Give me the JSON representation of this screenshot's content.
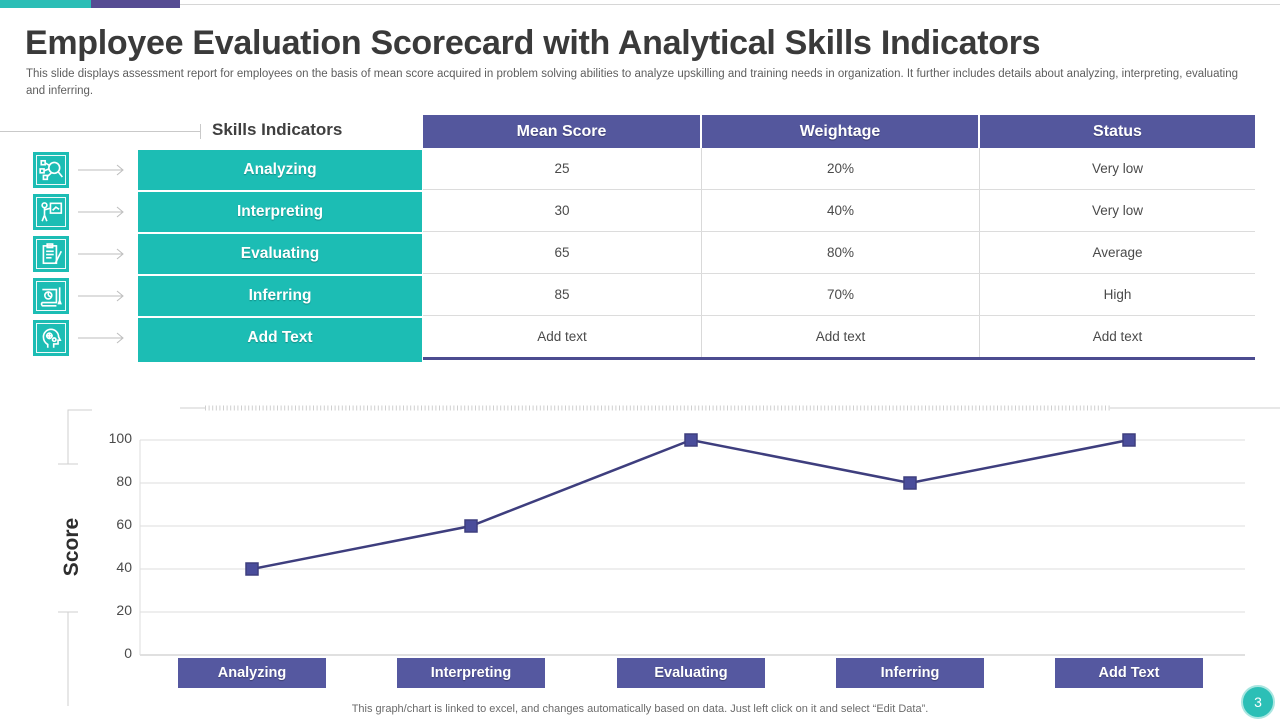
{
  "slide": {
    "title": "Employee Evaluation Scorecard with Analytical Skills Indicators",
    "subtitle": "This slide displays assessment report for employees on the basis of mean score acquired in problem solving abilities to analyze upskilling and training needs in organization. It further includes details about analyzing, interpreting, evaluating and inferring.",
    "footer_note": "This graph/chart is linked to excel,  and changes automatically based on data. Just left click on it and select “Edit Data”.",
    "page_number": "3"
  },
  "colors": {
    "teal": "#1CBDB4",
    "top_bar_teal": "#2BBEB6",
    "top_bar_purple": "#564C93",
    "header_purple": "#54579D",
    "category_purple": "#5558A0",
    "table_bottom_purple": "#4C4C90",
    "line_purple": "#3E3E7E",
    "marker_purple": "#4A4D9B",
    "page_circle_teal": "#2CBFB6"
  },
  "icons": [
    {
      "name": "magnifier-network-icon"
    },
    {
      "name": "presenter-board-icon"
    },
    {
      "name": "clipboard-pencil-icon"
    },
    {
      "name": "report-chart-pen-icon"
    },
    {
      "name": "head-gears-icon"
    }
  ],
  "table": {
    "row_header_label": "Skills Indicators",
    "columns": [
      "Mean Score",
      "Weightage",
      "Status"
    ],
    "rows": [
      {
        "label": "Analyzing",
        "cells": [
          "25",
          "20%",
          "Very low"
        ]
      },
      {
        "label": "Interpreting",
        "cells": [
          "30",
          "40%",
          "Very low"
        ]
      },
      {
        "label": "Evaluating",
        "cells": [
          "65",
          "80%",
          "Average"
        ]
      },
      {
        "label": "Inferring",
        "cells": [
          "85",
          "70%",
          "High"
        ]
      },
      {
        "label": "Add Text",
        "cells": [
          "Add text",
          "Add text",
          "Add text"
        ]
      }
    ]
  },
  "chart_data": {
    "type": "line",
    "categories": [
      "Analyzing",
      "Interpreting",
      "Evaluating",
      "Inferring",
      "Add Text"
    ],
    "values": [
      40,
      60,
      100,
      80,
      100
    ],
    "title": "",
    "xlabel": "",
    "ylabel": "Score",
    "yticks": [
      0,
      20,
      40,
      60,
      80,
      100
    ],
    "ylim": [
      0,
      100
    ],
    "grid": true,
    "legend": false,
    "marker": "square",
    "line_color": "#3E3E7E",
    "marker_color": "#4A4D9B",
    "category_box_color": "#5558A0"
  }
}
